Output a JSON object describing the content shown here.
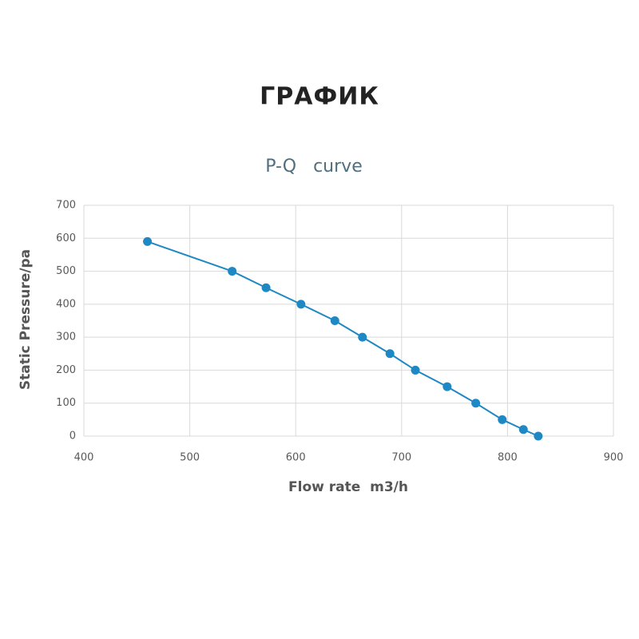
{
  "header": "ГРАФИК",
  "chart_data": {
    "type": "line",
    "title": "P-Q   curve",
    "x_label": "Flow rate  m3/h",
    "y_label": "Static Pressure/pa",
    "x": [
      460,
      540,
      572,
      605,
      637,
      663,
      689,
      713,
      743,
      770,
      795,
      815,
      829
    ],
    "series": [
      {
        "name": "P-Q",
        "color": "#1e88c4",
        "values": [
          590,
          500,
          450,
          400,
          350,
          300,
          250,
          200,
          150,
          100,
          50,
          20,
          0
        ]
      }
    ],
    "xlim": [
      400,
      900
    ],
    "xticks": [
      400,
      500,
      600,
      700,
      800,
      900
    ],
    "ylim": [
      0,
      700
    ],
    "yticks": [
      0,
      100,
      200,
      300,
      400,
      500,
      600,
      700
    ],
    "grid": true
  }
}
